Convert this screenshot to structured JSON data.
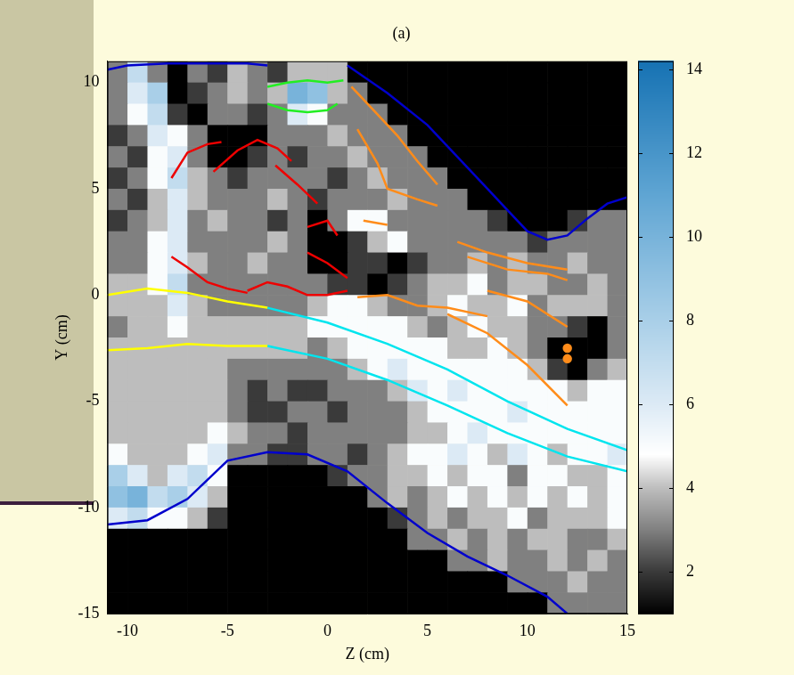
{
  "chart_data": {
    "type": "heatmap",
    "title": "(a)",
    "x_label": "Z (cm)",
    "y_label": "Y (cm)",
    "xlim": [
      -11,
      15
    ],
    "xticks": [
      -10,
      -5,
      0,
      5,
      10,
      15
    ],
    "ylim": [
      -15,
      11
    ],
    "yticks": [
      -15,
      -10,
      -5,
      0,
      5,
      10
    ],
    "grid": false,
    "cells": {
      "x": [
        -10.5,
        -9.5,
        -8.5,
        -7.5,
        -6.5,
        -5.5,
        -4.5,
        -3.5,
        -2.5,
        -1.5,
        -0.5,
        0.5,
        1.5,
        2.5,
        3.5,
        4.5,
        5.5,
        6.5,
        7.5,
        8.5,
        9.5,
        10.5,
        11.5,
        12.5,
        13.5,
        14.5
      ],
      "y": [
        10.5,
        9.5,
        8.5,
        7.5,
        6.5,
        5.5,
        4.5,
        3.5,
        2.5,
        1.5,
        0.5,
        -0.5,
        -1.5,
        -2.5,
        -3.5,
        -4.5,
        -5.5,
        -6.5,
        -7.5,
        -8.5,
        -9.5,
        -10.5,
        -11.5,
        -12.5,
        -13.5,
        -14.5
      ],
      "z": [
        [
          3,
          7,
          3,
          1,
          3,
          2,
          4,
          3,
          2,
          4,
          4,
          4,
          1,
          1,
          1,
          1,
          1,
          1,
          1,
          1,
          1,
          1,
          1,
          1,
          1,
          1
        ],
        [
          3,
          6,
          8,
          1,
          2,
          3,
          4,
          3,
          4,
          10,
          9,
          4,
          3,
          1,
          1,
          1,
          1,
          1,
          1,
          1,
          1,
          1,
          1,
          1,
          1,
          1
        ],
        [
          3,
          5,
          7,
          2,
          1,
          3,
          3,
          2,
          3,
          6,
          5,
          3,
          3,
          3,
          1,
          1,
          1,
          1,
          1,
          1,
          1,
          1,
          1,
          1,
          1,
          1
        ],
        [
          2,
          3,
          6,
          5,
          3,
          1,
          1,
          1,
          3,
          3,
          3,
          4,
          3,
          3,
          3,
          1,
          1,
          1,
          1,
          1,
          1,
          1,
          1,
          1,
          1,
          1
        ],
        [
          3,
          2,
          5,
          6,
          3,
          1,
          1,
          2,
          3,
          2,
          3,
          3,
          4,
          3,
          3,
          3,
          1,
          1,
          1,
          1,
          1,
          1,
          1,
          1,
          1,
          1
        ],
        [
          2,
          3,
          5,
          7,
          4,
          3,
          2,
          3,
          3,
          3,
          3,
          2,
          3,
          4,
          3,
          3,
          3,
          1,
          1,
          1,
          1,
          1,
          1,
          1,
          1,
          1
        ],
        [
          3,
          2,
          4,
          6,
          4,
          3,
          3,
          3,
          4,
          3,
          2,
          3,
          3,
          3,
          4,
          3,
          3,
          3,
          1,
          1,
          1,
          1,
          1,
          1,
          1,
          1
        ],
        [
          2,
          3,
          4,
          6,
          3,
          4,
          3,
          3,
          2,
          3,
          1,
          3,
          5,
          5,
          3,
          3,
          3,
          3,
          3,
          2,
          1,
          1,
          1,
          2,
          3,
          3
        ],
        [
          3,
          3,
          5,
          6,
          3,
          3,
          3,
          3,
          4,
          3,
          1,
          1,
          2,
          4,
          5,
          3,
          3,
          3,
          3,
          3,
          3,
          2,
          3,
          3,
          3,
          3
        ],
        [
          3,
          3,
          5,
          6,
          4,
          3,
          3,
          4,
          3,
          3,
          1,
          1,
          2,
          2,
          1,
          2,
          3,
          3,
          4,
          3,
          4,
          3,
          3,
          4,
          3,
          3
        ],
        [
          4,
          4,
          5,
          7,
          3,
          3,
          3,
          3,
          3,
          3,
          3,
          2,
          2,
          1,
          2,
          3,
          4,
          4,
          5,
          3,
          4,
          4,
          3,
          3,
          4,
          3
        ],
        [
          4,
          4,
          4,
          6,
          4,
          3,
          3,
          3,
          3,
          3,
          4,
          5,
          5,
          4,
          3,
          3,
          4,
          5,
          4,
          4,
          5,
          3,
          4,
          4,
          4,
          3
        ],
        [
          3,
          4,
          4,
          5,
          4,
          4,
          4,
          4,
          4,
          4,
          5,
          5,
          5,
          5,
          5,
          4,
          3,
          4,
          5,
          4,
          4,
          3,
          3,
          2,
          1,
          3
        ],
        [
          4,
          4,
          4,
          4,
          4,
          4,
          4,
          4,
          4,
          4,
          3,
          4,
          5,
          5,
          5,
          5,
          5,
          4,
          4,
          5,
          4,
          3,
          1,
          1,
          1,
          3
        ],
        [
          4,
          4,
          4,
          4,
          4,
          4,
          3,
          3,
          3,
          3,
          3,
          3,
          4,
          5,
          6,
          5,
          5,
          5,
          5,
          5,
          5,
          4,
          2,
          1,
          3,
          4
        ],
        [
          4,
          4,
          4,
          4,
          4,
          4,
          3,
          2,
          3,
          2,
          2,
          3,
          3,
          3,
          4,
          6,
          5,
          6,
          5,
          5,
          5,
          5,
          5,
          4,
          5,
          5
        ],
        [
          4,
          4,
          4,
          4,
          4,
          4,
          3,
          2,
          2,
          3,
          3,
          2,
          3,
          3,
          3,
          4,
          5,
          5,
          5,
          5,
          6,
          5,
          5,
          5,
          5,
          5
        ],
        [
          4,
          4,
          4,
          4,
          4,
          5,
          4,
          3,
          3,
          2,
          3,
          3,
          3,
          3,
          3,
          4,
          4,
          5,
          6,
          5,
          5,
          5,
          5,
          5,
          5,
          5
        ],
        [
          5,
          4,
          4,
          4,
          5,
          6,
          3,
          3,
          2,
          2,
          3,
          3,
          2,
          3,
          4,
          5,
          5,
          6,
          5,
          4,
          6,
          5,
          4,
          5,
          5,
          6
        ],
        [
          8,
          6,
          4,
          6,
          7,
          5,
          1,
          1,
          1,
          1,
          1,
          2,
          3,
          3,
          4,
          4,
          5,
          4,
          5,
          5,
          3,
          5,
          5,
          4,
          4,
          5
        ],
        [
          9,
          10,
          7,
          8,
          6,
          4,
          1,
          1,
          1,
          1,
          1,
          1,
          1,
          3,
          4,
          3,
          4,
          5,
          4,
          5,
          4,
          5,
          4,
          5,
          4,
          5
        ],
        [
          6,
          7,
          5,
          5,
          4,
          2,
          1,
          1,
          1,
          1,
          1,
          1,
          1,
          1,
          2,
          3,
          4,
          3,
          4,
          4,
          5,
          3,
          4,
          4,
          4,
          5
        ],
        [
          1,
          1,
          1,
          1,
          1,
          1,
          1,
          1,
          1,
          1,
          1,
          1,
          1,
          1,
          1,
          3,
          3,
          4,
          3,
          4,
          3,
          4,
          4,
          3,
          3,
          4
        ],
        [
          1,
          1,
          1,
          1,
          1,
          1,
          1,
          1,
          1,
          1,
          1,
          1,
          1,
          1,
          1,
          1,
          1,
          3,
          3,
          4,
          3,
          3,
          4,
          3,
          4,
          3
        ],
        [
          1,
          1,
          1,
          1,
          1,
          1,
          1,
          1,
          1,
          1,
          1,
          1,
          1,
          1,
          1,
          1,
          1,
          1,
          1,
          1,
          3,
          3,
          3,
          4,
          3,
          3
        ],
        [
          1,
          1,
          1,
          1,
          1,
          1,
          1,
          1,
          1,
          1,
          1,
          1,
          1,
          1,
          1,
          1,
          1,
          1,
          1,
          1,
          1,
          1,
          3,
          3,
          3,
          3
        ]
      ]
    },
    "colorbar": {
      "range": [
        1,
        14.2
      ],
      "ticks": [
        2,
        4,
        6,
        8,
        10,
        12,
        14
      ]
    },
    "series": [
      {
        "type": "line",
        "color": "#0000cc",
        "x": [
          -11,
          -10,
          -8,
          -6,
          -4,
          -3
        ],
        "values": [
          10.6,
          10.8,
          10.9,
          10.9,
          10.9,
          10.8
        ]
      },
      {
        "type": "line",
        "color": "#0000cc",
        "x": [
          1,
          3,
          5,
          6.5,
          8,
          9,
          10,
          11,
          12,
          13,
          14,
          15
        ],
        "values": [
          10.8,
          9.5,
          8,
          6.5,
          5,
          4,
          3,
          2.6,
          2.8,
          3.6,
          4.3,
          4.6
        ]
      },
      {
        "type": "line",
        "color": "#0000cc",
        "x": [
          -11,
          -9,
          -7,
          -5,
          -3,
          -1,
          1,
          3,
          5,
          7,
          9,
          11,
          12
        ],
        "values": [
          -10.8,
          -10.6,
          -9.6,
          -7.8,
          -7.4,
          -7.5,
          -8.3,
          -9.8,
          -11.2,
          -12.3,
          -13.2,
          -14.2,
          -15
        ]
      },
      {
        "type": "line",
        "color": "#22ee22",
        "x": [
          -3,
          -2,
          -1,
          0,
          0.8
        ],
        "values": [
          9.8,
          10,
          10.1,
          10,
          10.1
        ]
      },
      {
        "type": "line",
        "color": "#22ee22",
        "x": [
          -3,
          -2,
          -1,
          0,
          0.5
        ],
        "values": [
          9,
          8.7,
          8.6,
          8.7,
          9
        ]
      },
      {
        "type": "line",
        "color": "#ee0000",
        "x": [
          -7.8,
          -7,
          -6,
          -5.3
        ],
        "values": [
          5.5,
          6.7,
          7.1,
          7.2
        ]
      },
      {
        "type": "line",
        "color": "#ee0000",
        "x": [
          -5.7,
          -4.5,
          -3.5,
          -2.5,
          -1.8
        ],
        "values": [
          5.8,
          6.8,
          7.3,
          6.9,
          6.3
        ]
      },
      {
        "type": "line",
        "color": "#ee0000",
        "x": [
          -2.6,
          -1.5,
          -0.5
        ],
        "values": [
          6.1,
          5.2,
          4.3
        ]
      },
      {
        "type": "line",
        "color": "#ee0000",
        "x": [
          -1,
          0,
          0.5
        ],
        "values": [
          3.2,
          3.5,
          2.8
        ]
      },
      {
        "type": "line",
        "color": "#ee0000",
        "x": [
          -1,
          0,
          1
        ],
        "values": [
          2,
          1.5,
          0.8
        ]
      },
      {
        "type": "line",
        "color": "#ee0000",
        "x": [
          -7.8,
          -7,
          -6,
          -5,
          -4
        ],
        "values": [
          1.8,
          1.3,
          0.6,
          0.3,
          0.1
        ]
      },
      {
        "type": "line",
        "color": "#ee0000",
        "x": [
          -4,
          -3,
          -2,
          -1,
          0,
          1
        ],
        "values": [
          0.2,
          0.6,
          0.4,
          0,
          0,
          0.2
        ]
      },
      {
        "type": "line",
        "color": "#ff8c1a",
        "x": [
          1.2,
          2.5,
          3.5,
          4.5,
          5.5
        ],
        "values": [
          9.8,
          8.5,
          7.5,
          6.3,
          5.2
        ]
      },
      {
        "type": "line",
        "color": "#ff8c1a",
        "x": [
          1.5,
          2.5,
          3,
          4.5,
          5.5
        ],
        "values": [
          7.8,
          6.2,
          5,
          4.5,
          4.2
        ]
      },
      {
        "type": "line",
        "color": "#ff8c1a",
        "x": [
          1.8,
          3
        ],
        "values": [
          3.5,
          3.3
        ]
      },
      {
        "type": "line",
        "color": "#ff8c1a",
        "x": [
          6.5,
          8,
          10,
          12
        ],
        "values": [
          2.5,
          2,
          1.5,
          1.2
        ]
      },
      {
        "type": "line",
        "color": "#ff8c1a",
        "x": [
          7,
          9,
          11,
          12
        ],
        "values": [
          1.8,
          1.2,
          1,
          0.7
        ]
      },
      {
        "type": "line",
        "color": "#ff8c1a",
        "x": [
          1.5,
          3,
          4.5,
          6,
          8
        ],
        "values": [
          -0.1,
          0,
          -0.5,
          -0.6,
          -1
        ]
      },
      {
        "type": "line",
        "color": "#ff8c1a",
        "x": [
          8,
          10,
          12
        ],
        "values": [
          0.2,
          -0.3,
          -1.5
        ]
      },
      {
        "type": "line",
        "color": "#ff8c1a",
        "x": [
          6,
          8,
          10,
          12
        ],
        "values": [
          -0.9,
          -1.8,
          -3.3,
          -5.2
        ]
      },
      {
        "type": "scatter",
        "marker": "circle",
        "color": "#ff8c1a",
        "x": [
          12,
          12
        ],
        "values": [
          -2.5,
          -3
        ]
      },
      {
        "type": "line",
        "color": "#ffff00",
        "x": [
          -11,
          -9,
          -7,
          -5,
          -3
        ],
        "values": [
          0,
          0.3,
          0.1,
          -0.3,
          -0.6
        ]
      },
      {
        "type": "line",
        "color": "#ffff00",
        "x": [
          -11,
          -9,
          -7,
          -5,
          -3
        ],
        "values": [
          -2.6,
          -2.5,
          -2.3,
          -2.4,
          -2.4
        ]
      },
      {
        "type": "line",
        "color": "#00e5ee",
        "x": [
          -3,
          0,
          3,
          6,
          9,
          12,
          15
        ],
        "values": [
          -0.6,
          -1.3,
          -2.3,
          -3.5,
          -5,
          -6.3,
          -7.3
        ]
      },
      {
        "type": "line",
        "color": "#00e5ee",
        "x": [
          -3,
          0,
          3,
          6,
          9,
          12,
          15
        ],
        "values": [
          -2.4,
          -3,
          -4,
          -5.2,
          -6.5,
          -7.6,
          -8.3
        ]
      }
    ]
  }
}
